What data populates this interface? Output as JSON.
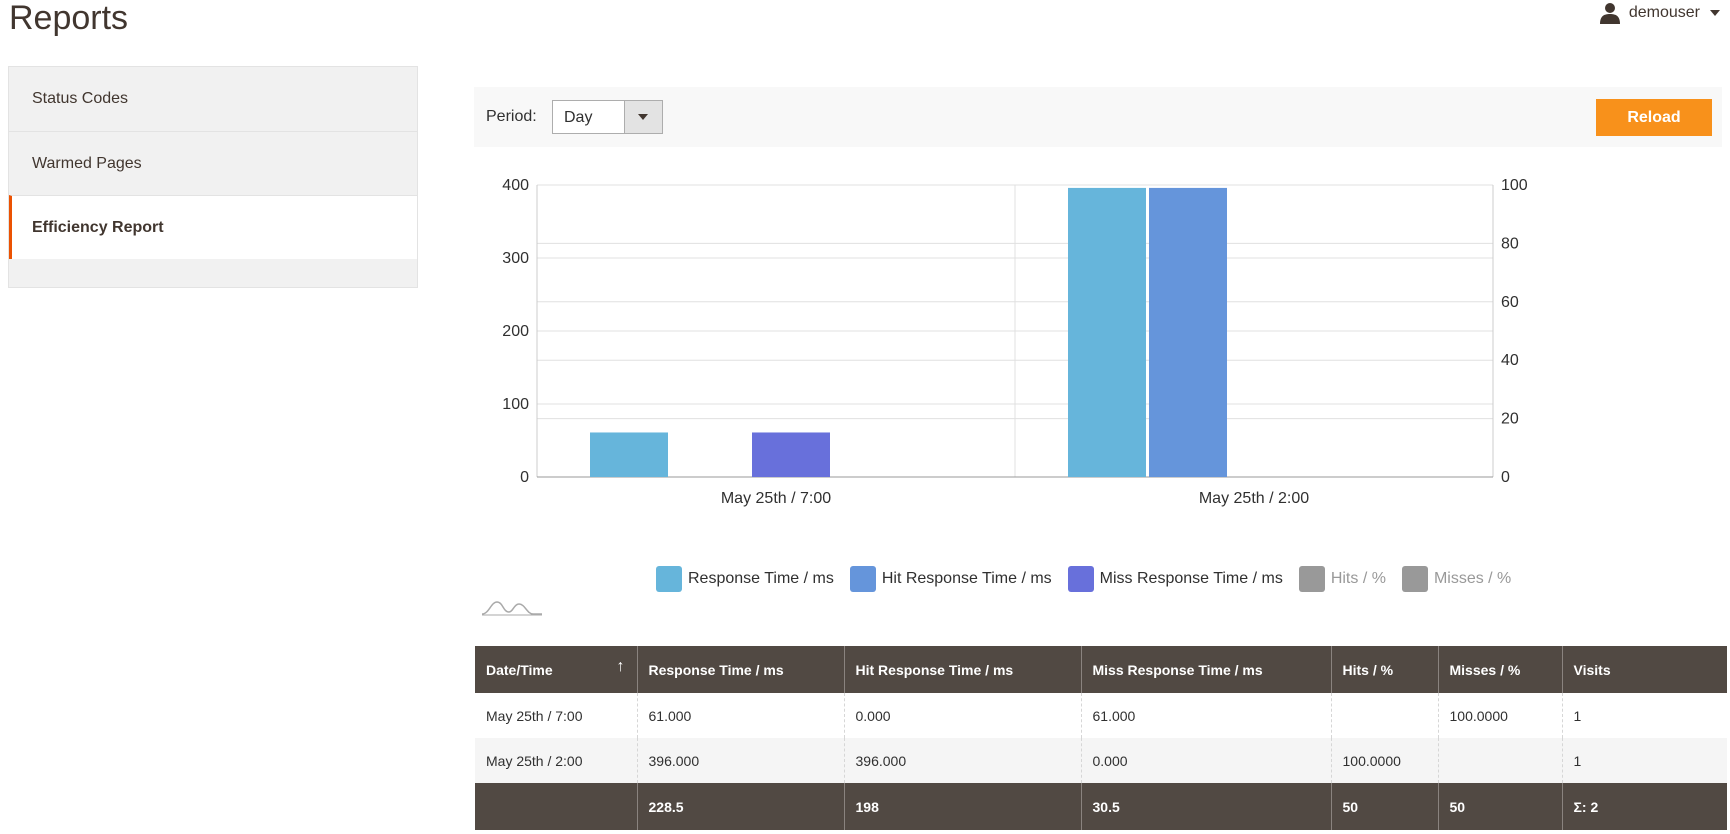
{
  "page": {
    "title": "Reports"
  },
  "user": {
    "name": "demouser"
  },
  "sidebar": {
    "items": [
      {
        "label": "Status Codes",
        "active": false
      },
      {
        "label": "Warmed Pages",
        "active": false
      },
      {
        "label": "Efficiency Report",
        "active": true
      }
    ]
  },
  "toolbar": {
    "period_label": "Period:",
    "period_value": "Day",
    "reload_label": "Reload"
  },
  "colors": {
    "accent": "#f8911b",
    "active_border": "#eb5202",
    "table_header": "#514943",
    "response": "#66b5db",
    "hit": "#6595db",
    "miss": "#6870db",
    "disabled": "#999999"
  },
  "chart_data": {
    "type": "bar",
    "categories": [
      "May 25th / 7:00",
      "May 25th / 2:00"
    ],
    "series": [
      {
        "name": "Response Time / ms",
        "values": [
          61,
          396
        ],
        "axis": "left",
        "color": "#66b5db"
      },
      {
        "name": "Hit Response Time / ms",
        "values": [
          0,
          396
        ],
        "axis": "left",
        "color": "#6595db"
      },
      {
        "name": "Miss Response Time / ms",
        "values": [
          61,
          0
        ],
        "axis": "left",
        "color": "#6870db"
      },
      {
        "name": "Hits / %",
        "values": [
          0,
          100
        ],
        "axis": "right",
        "hidden": true,
        "color": "#999999"
      },
      {
        "name": "Misses / %",
        "values": [
          100,
          0
        ],
        "axis": "right",
        "hidden": true,
        "color": "#999999"
      }
    ],
    "ylim": [
      0,
      400
    ],
    "yticks": [
      0,
      100,
      200,
      300,
      400
    ],
    "y2lim": [
      0,
      100
    ],
    "y2ticks": [
      0,
      20,
      40,
      60,
      80,
      100
    ],
    "grid": true,
    "legend": "bottom"
  },
  "table": {
    "columns": [
      "Date/Time",
      "Response Time / ms",
      "Hit Response Time / ms",
      "Miss Response Time / ms",
      "Hits / %",
      "Misses / %",
      "Visits"
    ],
    "sort_icon": "↑",
    "rows": [
      [
        "May 25th / 7:00",
        "61.000",
        "0.000",
        "61.000",
        "",
        "100.0000",
        "1"
      ],
      [
        "May 25th / 2:00",
        "396.000",
        "396.000",
        "0.000",
        "100.0000",
        "",
        "1"
      ]
    ],
    "totals": [
      "",
      "228.5",
      "198",
      "30.5",
      "50",
      "50",
      "Σ: 2"
    ]
  }
}
